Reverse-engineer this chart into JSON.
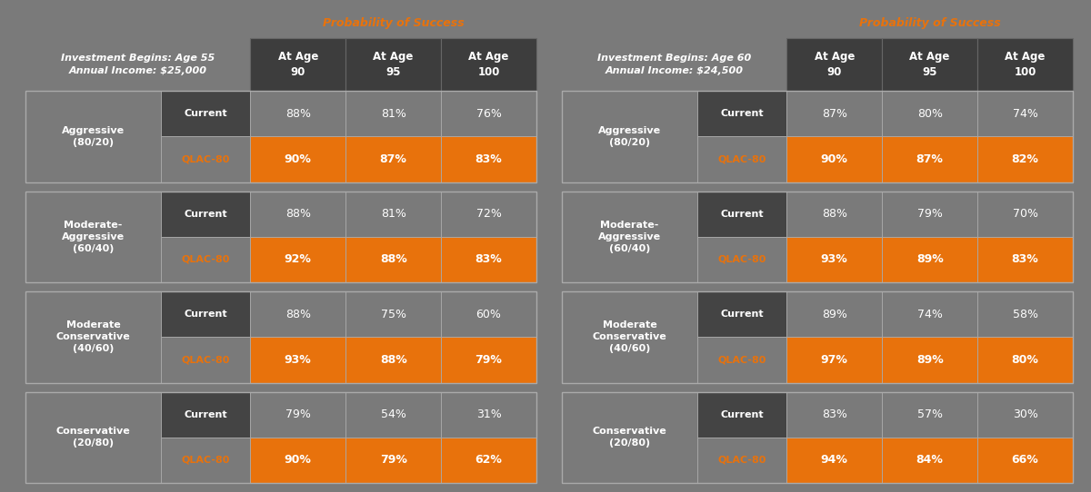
{
  "bg_color": "#7A7A7A",
  "dark_header_color": "#3D3D3D",
  "orange_color": "#E8720C",
  "white_color": "#FFFFFF",
  "prob_success_label": "Probability of Success",
  "table1": {
    "header_line1": "Investment Begins: Age 55",
    "header_line2": "Annual Income: $25,000",
    "col_headers": [
      "At Age\n90",
      "At Age\n95",
      "At Age\n100"
    ],
    "rows": [
      {
        "label": "Aggressive\n(80/20)",
        "current": [
          "88%",
          "81%",
          "76%"
        ],
        "qlac": [
          "90%",
          "87%",
          "83%"
        ]
      },
      {
        "label": "Moderate-\nAggressive\n(60/40)",
        "current": [
          "88%",
          "81%",
          "72%"
        ],
        "qlac": [
          "92%",
          "88%",
          "83%"
        ]
      },
      {
        "label": "Moderate\nConservative\n(40/60)",
        "current": [
          "88%",
          "75%",
          "60%"
        ],
        "qlac": [
          "93%",
          "88%",
          "79%"
        ]
      },
      {
        "label": "Conservative\n(20/80)",
        "current": [
          "79%",
          "54%",
          "31%"
        ],
        "qlac": [
          "90%",
          "79%",
          "62%"
        ]
      }
    ]
  },
  "table2": {
    "header_line1": "Investment Begins: Age 60",
    "header_line2": "Annual Income: $24,500",
    "col_headers": [
      "At Age\n90",
      "At Age\n95",
      "At Age\n100"
    ],
    "rows": [
      {
        "label": "Aggressive\n(80/20)",
        "current": [
          "87%",
          "80%",
          "74%"
        ],
        "qlac": [
          "90%",
          "87%",
          "82%"
        ]
      },
      {
        "label": "Moderate-\nAggressive\n(60/40)",
        "current": [
          "88%",
          "79%",
          "70%"
        ],
        "qlac": [
          "93%",
          "89%",
          "83%"
        ]
      },
      {
        "label": "Moderate\nConservative\n(40/60)",
        "current": [
          "89%",
          "74%",
          "58%"
        ],
        "qlac": [
          "97%",
          "89%",
          "80%"
        ]
      },
      {
        "label": "Conservative\n(20/80)",
        "current": [
          "83%",
          "57%",
          "30%"
        ],
        "qlac": [
          "94%",
          "84%",
          "66%"
        ]
      }
    ]
  }
}
